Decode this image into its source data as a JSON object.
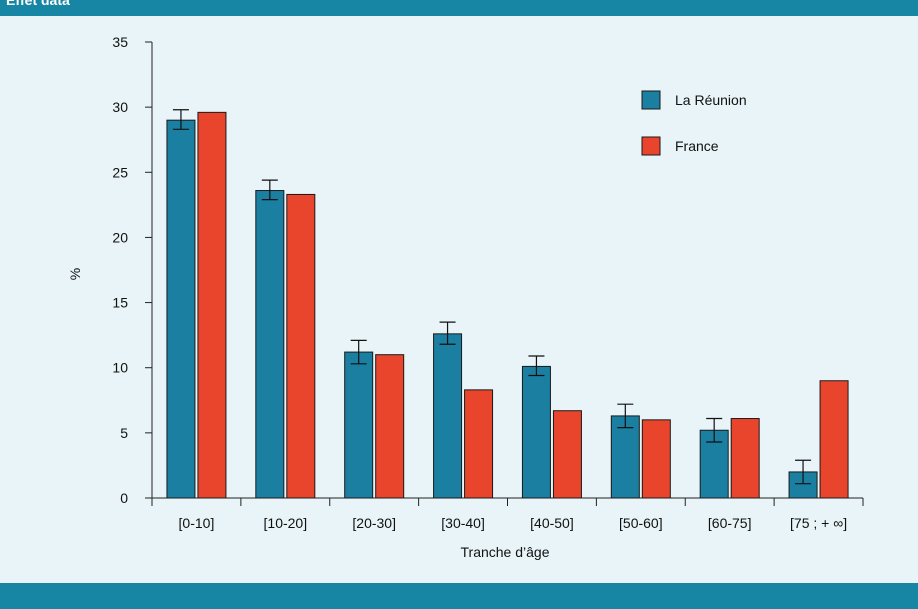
{
  "header": {
    "caption": "Effet data"
  },
  "colors": {
    "band": "#1786a4",
    "panel": "#e8f4f7"
  },
  "chart_data": {
    "type": "bar",
    "title": "",
    "xlabel": "Tranche d’âge",
    "ylabel": "%",
    "ylim": [
      0,
      35
    ],
    "yticks": [
      0,
      5,
      10,
      15,
      20,
      25,
      30,
      35
    ],
    "ytick_labels": [
      "0",
      "5",
      "10",
      "15",
      "20",
      "25",
      "30",
      "35"
    ],
    "grid": false,
    "legend_position": "top-right",
    "categories": [
      "[0-10]",
      "[10-20]",
      "[20-30]",
      "[30-40]",
      "[40-50]",
      "[50-60]",
      "[60-75]",
      "[75 ; + ∞]"
    ],
    "series": [
      {
        "name": "La Réunion",
        "color": "#1a7fa0",
        "values": [
          29.0,
          23.6,
          11.2,
          12.6,
          10.1,
          6.3,
          5.2,
          2.0
        ],
        "error_low": [
          28.3,
          22.9,
          10.3,
          11.8,
          9.4,
          5.4,
          4.3,
          1.1
        ],
        "error_high": [
          29.8,
          24.4,
          12.1,
          13.5,
          10.9,
          7.2,
          6.1,
          2.9
        ]
      },
      {
        "name": "France",
        "color": "#e8452c",
        "values": [
          29.6,
          23.3,
          11.0,
          8.3,
          6.7,
          6.0,
          6.1,
          9.0
        ]
      }
    ]
  }
}
